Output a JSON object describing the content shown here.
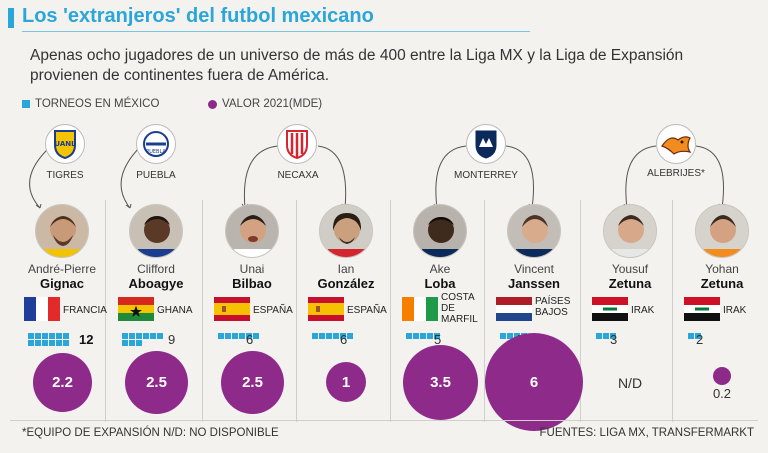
{
  "header": {
    "title": "Los 'extranjeros' del futbol mexicano",
    "subtitle": "Apenas ocho jugadores de un universo de más de 400 entre la Liga MX y la Liga de Expansión provienen de continentes fuera de América."
  },
  "legend": {
    "tournaments": "TORNEOS EN MÉXICO",
    "value": "VALOR 2021(MDE)"
  },
  "colors": {
    "accent": "#2aa6d9",
    "bubble": "#8e2a8a"
  },
  "teams": [
    {
      "name": "TIGRES",
      "icon": "tigres-crest-icon"
    },
    {
      "name": "PUEBLA",
      "icon": "puebla-crest-icon"
    },
    {
      "name": "NECAXA",
      "icon": "necaxa-crest-icon"
    },
    {
      "name": "MONTERREY",
      "icon": "monterrey-crest-icon"
    },
    {
      "name": "ALEBRIJES*",
      "icon": "alebrijes-crest-icon"
    }
  ],
  "players": [
    {
      "first": "André-Pierre",
      "last": "Gignac",
      "country": "FRANCIA",
      "tournaments": 12,
      "value": 2.2,
      "value_label": "2.2"
    },
    {
      "first": "Clifford",
      "last": "Aboagye",
      "country": "GHANA",
      "tournaments": 9,
      "value": 2.5,
      "value_label": "2.5"
    },
    {
      "first": "Unai",
      "last": "Bilbao",
      "country": "ESPAÑA",
      "tournaments": 6,
      "value": 2.5,
      "value_label": "2.5"
    },
    {
      "first": "Ian",
      "last": "González",
      "country": "ESPAÑA",
      "tournaments": 6,
      "value": 1,
      "value_label": "1"
    },
    {
      "first": "Ake",
      "last": "Loba",
      "country": "COSTA DE MARFIL",
      "country_lines": [
        "COSTA",
        "DE",
        "MARFIL"
      ],
      "tournaments": 5,
      "value": 3.5,
      "value_label": "3.5"
    },
    {
      "first": "Vincent",
      "last": "Janssen",
      "country": "PAÍSES BAJOS",
      "country_lines": [
        "PAÍSES",
        "BAJOS"
      ],
      "tournaments": 4,
      "value": 6,
      "value_label": "6"
    },
    {
      "first": "Yousuf",
      "last": "Zetuna",
      "country": "IRAK",
      "tournaments": 3,
      "value": null,
      "value_label": "N/D"
    },
    {
      "first": "Yohan",
      "last": "Zetuna",
      "country": "IRAK",
      "tournaments": 2,
      "value": 0.2,
      "value_label": "0.2"
    }
  ],
  "footer": {
    "note": "*EQUIPO DE EXPANSIÓN N/D: NO DISPONIBLE",
    "sources": "FUENTES: LIGA MX, TRANSFERMARKT"
  }
}
